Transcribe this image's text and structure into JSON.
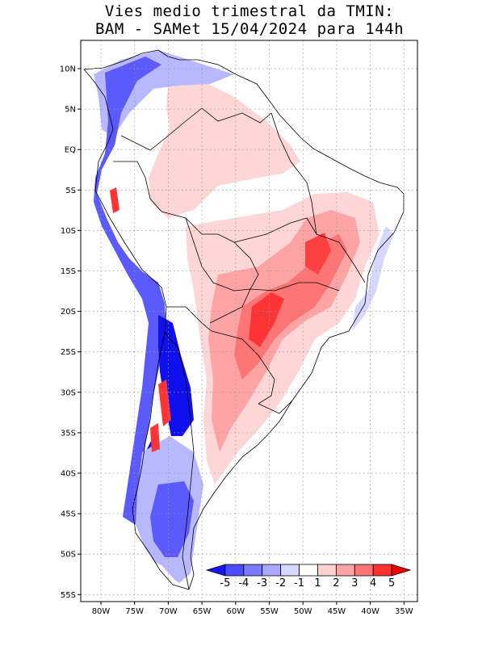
{
  "title": {
    "line1": "Vies medio trimestral da TMIN:",
    "line2": "BAM - SAMet 15/04/2024  para 144h"
  },
  "map": {
    "lon_labels": [
      "80W",
      "75W",
      "70W",
      "65W",
      "60W",
      "55W",
      "50W",
      "45W",
      "40W",
      "35W"
    ],
    "lat_labels": [
      "10N",
      "5N",
      "EQ",
      "5S",
      "10S",
      "15S",
      "20S",
      "25S",
      "30S",
      "35S",
      "40S",
      "45S",
      "50S",
      "55S"
    ]
  },
  "colorbar": {
    "labels": [
      "-5",
      "-4",
      "-3",
      "-2",
      "-1",
      "1",
      "2",
      "3",
      "4",
      "5"
    ],
    "colors": [
      "#1414ff",
      "#4b4bff",
      "#7a7aff",
      "#a8a8ff",
      "#d6d6ff",
      "#ffffff",
      "#ffd2d2",
      "#ffa4a4",
      "#ff7474",
      "#ff3030",
      "#ee0000"
    ]
  },
  "legend_colors": {
    "strong_cold": "#1010ee",
    "cold": "#5a5aff",
    "mild_cold": "#b8b8ff",
    "neutral": "#ffffff",
    "mild_warm": "#ffd6d6",
    "warm": "#ff8a8a",
    "strong_warm": "#ff3434"
  }
}
